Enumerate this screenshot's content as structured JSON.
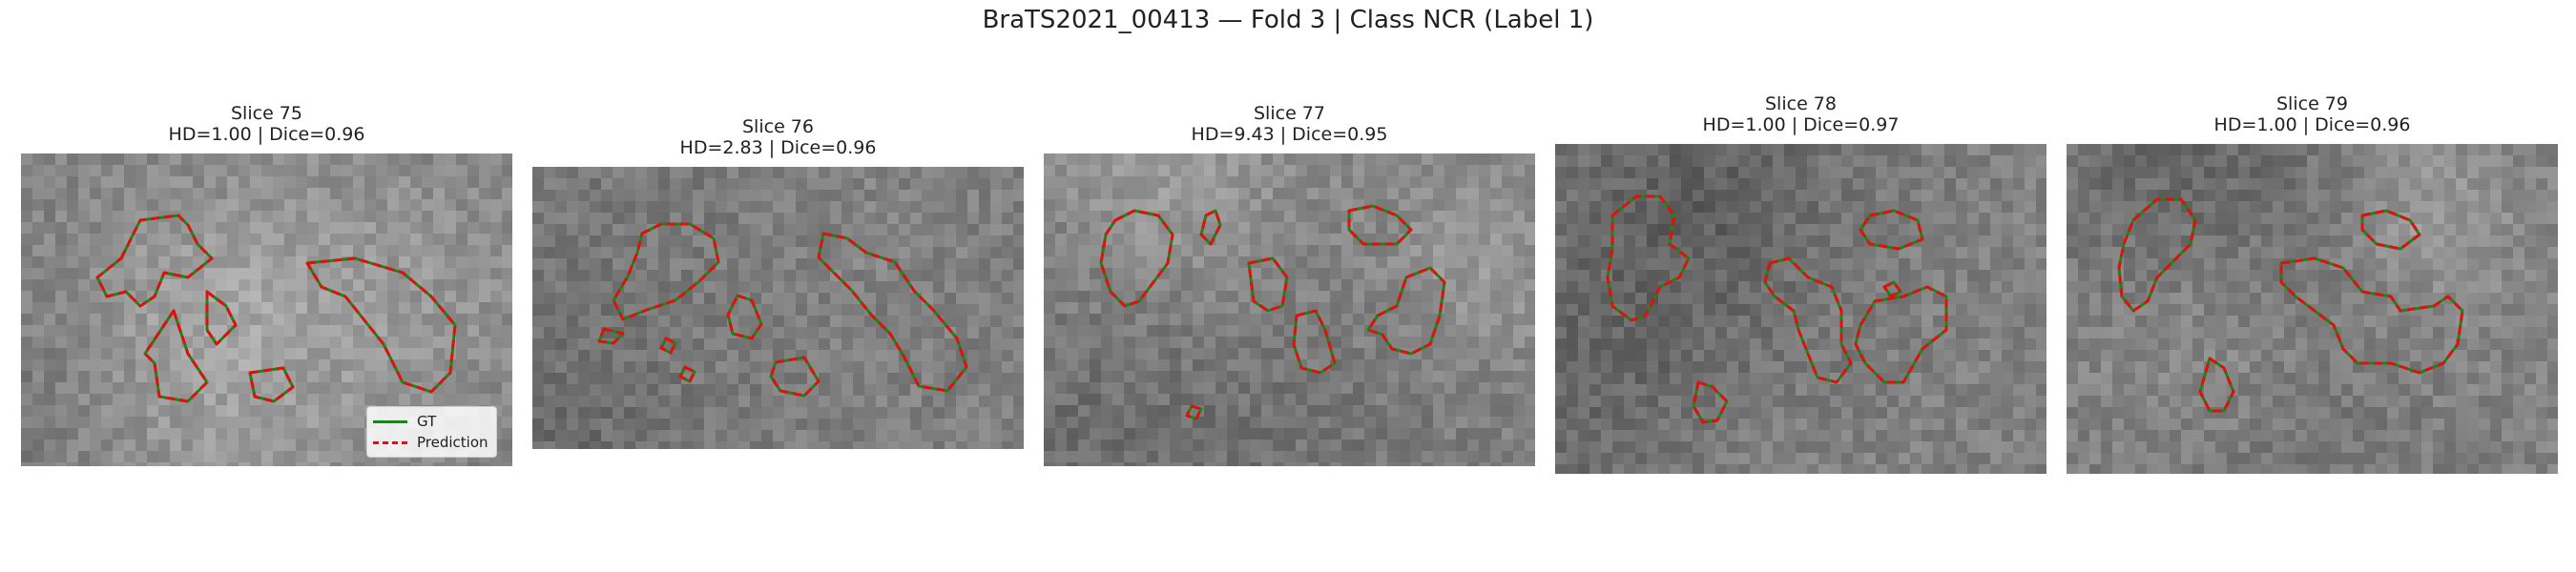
{
  "figure": {
    "title": "BraTS2021_00413 — Fold 3 | Class NCR (Label 1)"
  },
  "panels": [
    {
      "slice": "Slice 75",
      "metrics": "HD=1.00 | Dice=0.96"
    },
    {
      "slice": "Slice 76",
      "metrics": "HD=2.83 | Dice=0.96"
    },
    {
      "slice": "Slice 77",
      "metrics": "HD=9.43 | Dice=0.95"
    },
    {
      "slice": "Slice 78",
      "metrics": "HD=1.00 | Dice=0.97"
    },
    {
      "slice": "Slice 79",
      "metrics": "HD=1.00 | Dice=0.96"
    }
  ],
  "legend": {
    "gt_label": "GT",
    "prediction_label": "Prediction"
  },
  "colors": {
    "gt": "#138a13",
    "prediction": "#e01010"
  }
}
